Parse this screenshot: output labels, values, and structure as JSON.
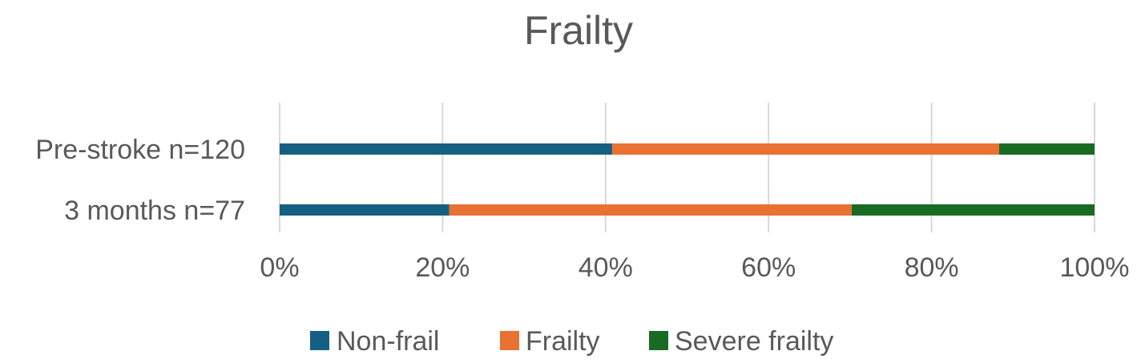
{
  "chart_data": {
    "type": "bar",
    "orientation": "horizontal",
    "stacked": "percent",
    "title": "Frailty",
    "categories": [
      "Pre-stroke n=120",
      "3 months n=77"
    ],
    "series": [
      {
        "name": "Non-frail",
        "color": "#156082",
        "values": [
          40.8,
          20.8
        ]
      },
      {
        "name": "Frailty",
        "color": "#E97132",
        "values": [
          47.5,
          49.4
        ]
      },
      {
        "name": "Severe frailty",
        "color": "#196B24",
        "values": [
          11.7,
          29.8
        ]
      }
    ],
    "x_ticks": [
      "0%",
      "20%",
      "40%",
      "60%",
      "80%",
      "100%"
    ],
    "xlim": [
      0,
      100
    ],
    "grid": true,
    "legend_position": "bottom"
  }
}
